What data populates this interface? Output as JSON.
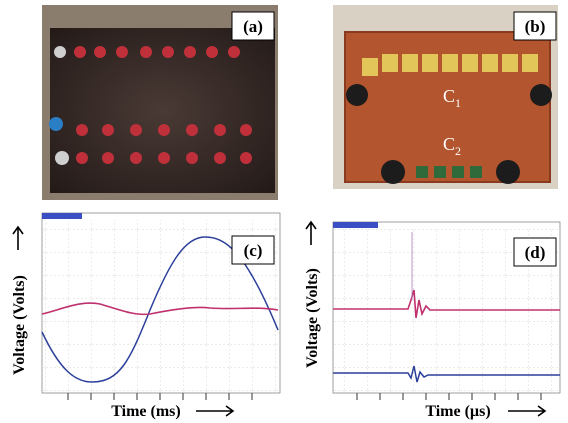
{
  "panels": [
    {
      "label": "(a)"
    },
    {
      "label": "(b)",
      "capacitors": [
        {
          "label": "C",
          "subscript": "1"
        },
        {
          "label": "C",
          "subscript": "2"
        }
      ]
    },
    {
      "label": "(c)",
      "x_label": "Time (ms)"
    },
    {
      "label": "(d)",
      "x_label": "Time (µs)"
    }
  ],
  "y_label": "Voltage (Volts)"
}
